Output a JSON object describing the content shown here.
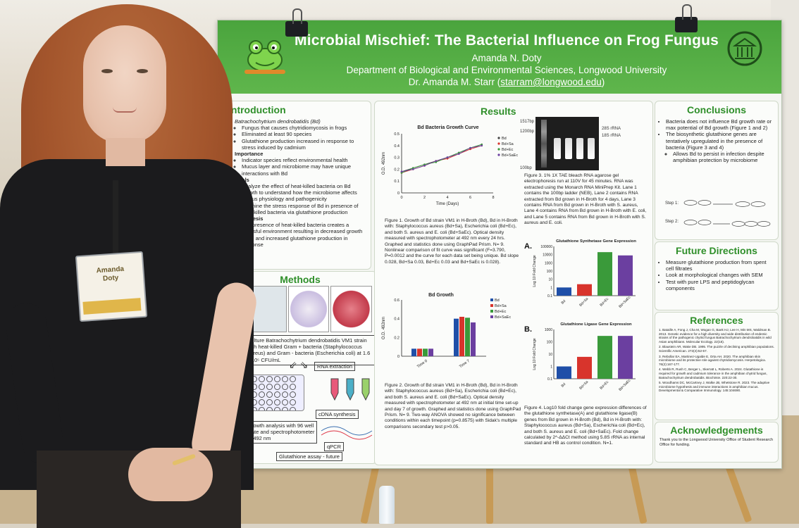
{
  "poster": {
    "title": "Microbial Mischief: The Bacterial Influence on Frog Fungus",
    "author": "Amanda N. Doty",
    "department": "Department of Biological and Environmental Sciences, Longwood University",
    "advisor_prefix": "Dr. Amanda M. Starr (",
    "advisor_email": "starram@longwood.edu",
    "advisor_suffix": ")"
  },
  "introduction": {
    "heading": "Introduction",
    "b1": "Batrachochytrium dendrobatidis (Bd)",
    "b1_1": "Fungus that causes chytridiomycosis in frogs",
    "b1_2": "Eliminated at least 90 species",
    "b1_3": "Glutathione production increased in response to stress induced by cadmium",
    "b2": "Importance",
    "b2_1": "Indicator species reflect environmental health",
    "b2_2": "Mucus layer and microbiome may have unique interactions with Bd",
    "b3": "Goals",
    "b3_1": "Analyze the effect of heat-killed bacteria on Bd growth to understand how the microbiome affects fungus physiology and pathogenicity",
    "b3_2": "Examine the stress response of Bd in presence of heat-killed bacteria via glutathione production",
    "b4": "Hypothesis",
    "b4_1": "The presence of heat-killed bacteria creates a stressful environment resulting in decreased growth of Bd and increased glutathione production in response"
  },
  "methods": {
    "heading": "Methods",
    "culture": "Culture Batrachochytrium dendrobatidis VM1 strain with heat-killed Gram + bacteria (Staphylococcus aureus) and Gram - bacteria (Escherichia coli) at 1.6 x 10⁵ CFU/mL",
    "rna": "RNA extraction",
    "cdna": "cDNA synthesis",
    "growth": "Growth analysis with 96 well plate and spectrophotometer at 492 nm",
    "qpcr": "qPCR",
    "glut": "Glutathione assay - future"
  },
  "results": {
    "heading": "Results",
    "fig1_title": "Bd Bacteria Growth Curve",
    "fig1_ylabel": "O.D. 492nm",
    "fig1_xlabel": "Time (Days)",
    "fig1_cap": "Figure 1. Growth of Bd strain VM1 in H-Broth (Bd), Bd in H-Broth with: Staphylococcus aureus (Bd+Sa), Escherichia coli (Bd+Ec), and both S. aureus and E. coli (Bd+SaEc). Optical density measured with spectrophotometer at 492 nm every 24 hrs. Graphed and statistics done using GraphPad Prism. N= 9. Nonlinear comparison of fit curve was significant (F=3.790, P=0.0012 and the curve for each data set being unique. Bd slope 0.028, Bd+Sa 0.03, Bd+Ec 0.03 and Bd+SaEc is 0.028).",
    "fig2_title": "Bd Growth",
    "fig2_ylabel": "O.D. 492nm",
    "fig2_cap": "Figure 2. Growth of Bd strain VM1 in H-Broth (Bd), Bd in H-Broth with: Staphylococcus aureus (Bd+Sa), Escherichia coli (Bd+Ec), and both S. aureus and E. coli (Bd+SaEc). Optical density measured with spectrophotometer at 492 nm at initial time set-up and day 7 of growth. Graphed and statistics done using GraphPad Prism. N= 9. Two-way ANOVA showed no significance between conditions within each timepoint (p=0.8575) with Sidak's multiple comparisons secondary test p>0.05.",
    "fig3_cap": "Figure 3. 1% 1X TAE bleach RNA agarose gel electrophoresis run at 110V for 45 minutes. RNA was extracted using the Monarch RNA MiniPrep Kit. Lane 1 contains the 100bp ladder (NEB), Lane 2 contains RNA extracted from Bd grown in H-Broth for 4 days, Lane 3 contains RNA from Bd grown in H-Broth with S. aureus, Lane 4 contains RNA from Bd grown in H-Broth with E. coli, and Lane 5 contains RNA from Bd grown in H-Broth with S. aureus and E. coli.",
    "gel_28s": "28S rRNA",
    "gel_18s": "18S rRNA",
    "gel_1517": "1517bp",
    "gel_1200": "1200bp",
    "gel_100": "100bp",
    "figA_label": "A.",
    "figA_title": "Glutathione Synthetase Gene Expression",
    "figB_label": "B.",
    "figB_title": "Glutathione Ligase Gene Expression",
    "fold_ylabel": "Log 10 Fold Change",
    "fig4_cap": "Figure 4. Log10 fold change gene expression differences of the glutathione synthetase(A) and glutathione ligase(B) genes from Bd grown in H-Broth (Bd), Bd in H-Broth with: Staphylococcus aureus (Bd+Sa), Escherichia coli (Bd+Ec), and both S. aureus and E. coli (Bd+SaEc). Fold change calculated by 2^-ΔΔCt method using 5.8S rRNA as internal standard and HB as control condition. N=1."
  },
  "conclusions": {
    "heading": "Conclusions",
    "c1": "Bacteria does not influence Bd growth rate or max potential of Bd growth (Figure 1 and 2)",
    "c2": "The biosynthetic glutathione genes are tentatively upregulated in the presence of bacteria (Figure 3 and 4)",
    "c2_1": "Allows Bd to persist in infection despite amphibian protection by microbiome",
    "step1": "Step 1:",
    "step2": "Step 2:"
  },
  "future": {
    "heading": "Future Directions",
    "f1": "Measure glutathione production from spent cell filtrates",
    "f2": "Look at morphological changes with SEM",
    "f3": "Test with pure LPS and peptidoglycan components"
  },
  "references": {
    "heading": "References",
    "items": [
      "1. Bataille A, Fong J, Cha M, Wogan G, Baek HJ, Lee H, Min MS, Waldman B. 2013. Genetic evidence for a high diversity and wide distribution of endemic strains of the pathogenic chytrid fungus Batrachochytrium dendrobatidis in wild Asian amphibians. Molecular Ecology. 22(16).",
      "2. Blaustein AR, Wake DB. 1995. The puzzle of declining amphibian populations. Scientific American. 272(4):52-57.",
      "3. Rebollar EA, Martinez-Ugalde E, Orta AH. 2020. The amphibian skin microbiome and its protective role against chytridiomycosis. Herpetologica. 76(2):167-177.",
      "4. Webb R, Rush C, Berger L, Skerratt L, Roberts A. 2024. Glutathione is required for growth and cadmium tolerance in the amphibian chytrid fungus, Batrachochytrium dendrobatidis. Biochimie. 220:22-30.",
      "5. Woodhams DC, McCartney J, Walke JB, Whetstone R. 2023. The adaptive microbiome hypothesis and immune interactions in amphibian mucus. Developmental & Comparative Immunology. 145:104690."
    ]
  },
  "acknowledgements": {
    "heading": "Acknowledgements",
    "text": "Thank you to the Longwood University Office of Student Research Office for funding."
  },
  "badge": {
    "name_line1": "Amanda",
    "name_line2": "Doty"
  },
  "chart_data": [
    {
      "type": "line",
      "title": "Bd Bacteria Growth Curve",
      "xlabel": "Time (Days)",
      "ylabel": "O.D. 492nm",
      "xlim": [
        0,
        8
      ],
      "ylim": [
        0,
        0.5
      ],
      "x": [
        0,
        1,
        2,
        3,
        4,
        5,
        6,
        7
      ],
      "series": [
        {
          "name": "Bd",
          "values": [
            0.18,
            0.21,
            0.24,
            0.27,
            0.3,
            0.34,
            0.38,
            0.41
          ],
          "color": "#444444"
        },
        {
          "name": "Bd+Sa",
          "values": [
            0.17,
            0.2,
            0.23,
            0.27,
            0.29,
            0.33,
            0.37,
            0.4
          ],
          "color": "#d8342c"
        },
        {
          "name": "Bd+Ec",
          "values": [
            0.17,
            0.21,
            0.24,
            0.26,
            0.3,
            0.34,
            0.38,
            0.41
          ],
          "color": "#3a9a3a"
        },
        {
          "name": "Bd+SaEc",
          "values": [
            0.18,
            0.2,
            0.23,
            0.27,
            0.3,
            0.33,
            0.38,
            0.4
          ],
          "color": "#6b3fa0"
        }
      ]
    },
    {
      "type": "bar",
      "title": "Bd Growth",
      "ylabel": "O.D. 492nm",
      "categories": [
        "Time 0",
        "Time 7"
      ],
      "ylim": [
        0,
        0.6
      ],
      "series": [
        {
          "name": "Bd",
          "values": [
            0.08,
            0.4
          ],
          "color": "#1f4fa8"
        },
        {
          "name": "Bd+Sa",
          "values": [
            0.08,
            0.42
          ],
          "color": "#d8342c"
        },
        {
          "name": "Bd+Ec",
          "values": [
            0.08,
            0.41
          ],
          "color": "#3a9a3a"
        },
        {
          "name": "Bd+SaEc",
          "values": [
            0.08,
            0.36
          ],
          "color": "#6b3fa0"
        }
      ]
    },
    {
      "type": "bar",
      "title": "Glutathione Synthetase Gene Expression",
      "ylabel": "Log 10 Fold Change",
      "categories": [
        "Bd",
        "Bd+Sa",
        "Bd+Ec",
        "Bd+SaEc"
      ],
      "ylim": [
        0.1,
        100000
      ],
      "log_scale": true,
      "values": [
        1,
        2.5,
        20000,
        8000
      ],
      "colors": [
        "#1f4fa8",
        "#d8342c",
        "#3a9a3a",
        "#6b3fa0"
      ]
    },
    {
      "type": "bar",
      "title": "Glutathione Ligase Gene Expression",
      "ylabel": "Log 10 Fold Change",
      "categories": [
        "Bd",
        "Bd+Sa",
        "Bd+Ec",
        "Bd+SaEc"
      ],
      "ylim": [
        0.1,
        1000
      ],
      "log_scale": true,
      "values": [
        1,
        6,
        300,
        300
      ],
      "colors": [
        "#1f4fa8",
        "#d8342c",
        "#3a9a3a",
        "#6b3fa0"
      ]
    }
  ]
}
